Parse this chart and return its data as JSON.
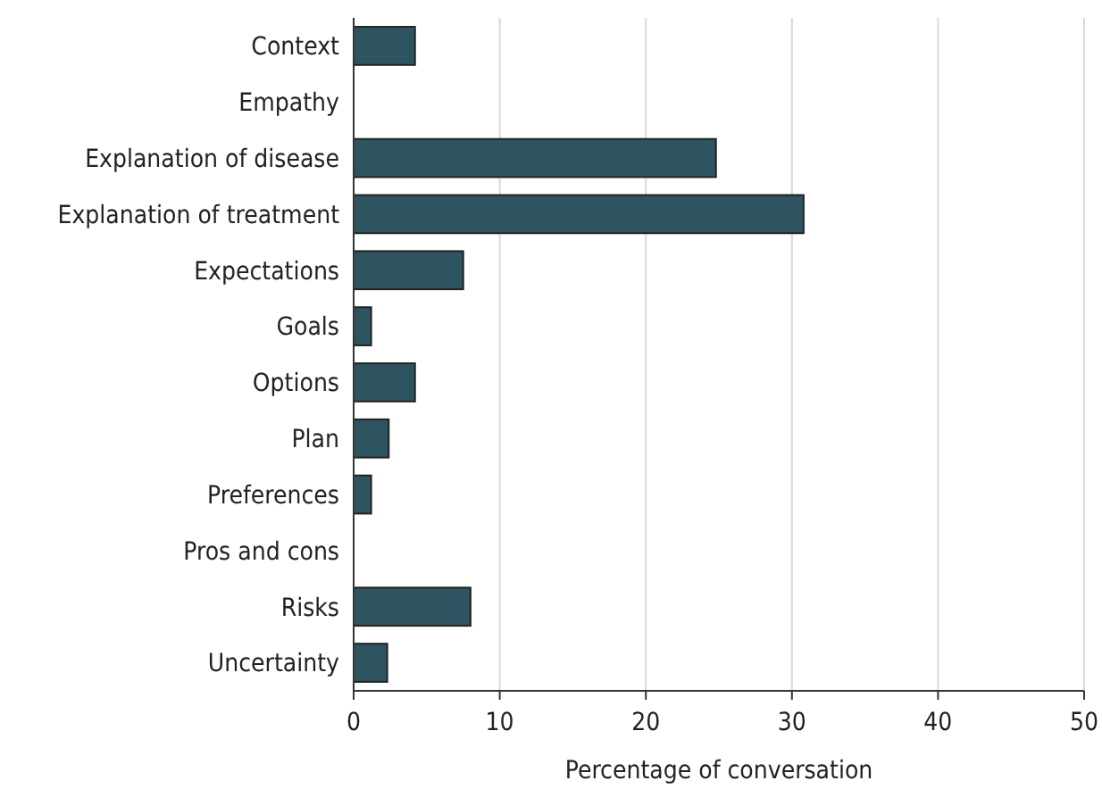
{
  "chart_data": {
    "type": "bar",
    "orientation": "horizontal",
    "xlabel": "Percentage of conversation",
    "categories": [
      "Context",
      "Empathy",
      "Explanation of disease",
      "Explanation of treatment",
      "Expectations",
      "Goals",
      "Options",
      "Plan",
      "Preferences",
      "Pros and cons",
      "Risks",
      "Uncertainty"
    ],
    "values": [
      4.2,
      0,
      24.8,
      30.8,
      7.5,
      1.2,
      4.2,
      2.4,
      1.2,
      0,
      8.0,
      2.3
    ],
    "color": "#2f5461",
    "xlim": [
      0,
      50
    ],
    "xticks": [
      0,
      10,
      20,
      30,
      40,
      50
    ],
    "grid": "x"
  }
}
